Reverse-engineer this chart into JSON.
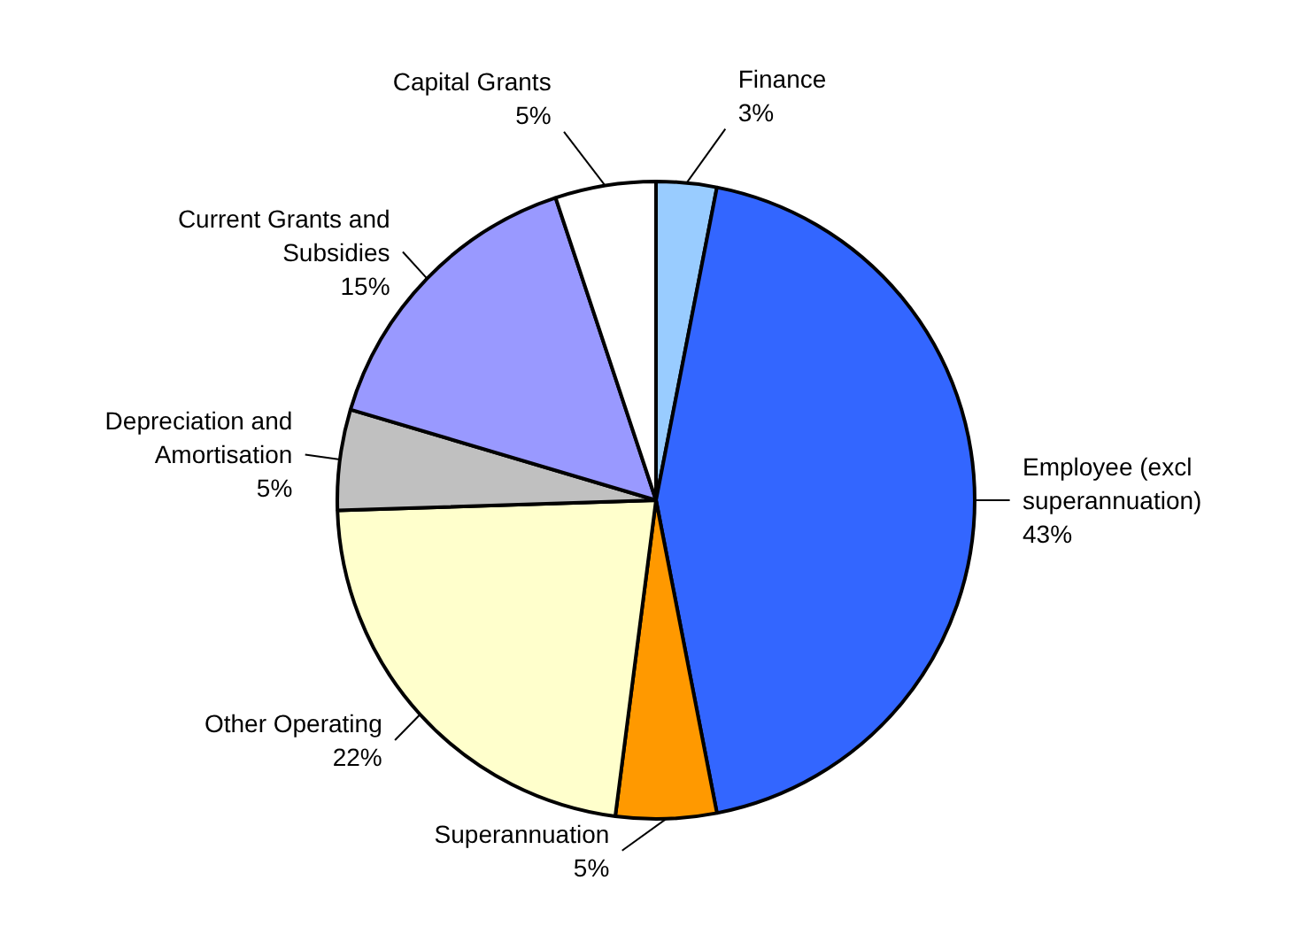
{
  "chart_data": {
    "type": "pie",
    "categories": [
      "Finance",
      "Employee (excl superannuation)",
      "Superannuation",
      "Other Operating",
      "Depreciation and Amortisation",
      "Current Grants and Subsidies",
      "Capital Grants"
    ],
    "values": [
      3,
      43,
      5,
      22,
      5,
      15,
      5
    ],
    "value_labels": [
      "3%",
      "43%",
      "5%",
      "22%",
      "5%",
      "15%",
      "5%"
    ],
    "colors": [
      "#99ccff",
      "#3366ff",
      "#ff9900",
      "#ffffcc",
      "#c0c0c0",
      "#9999ff",
      "#ffffff"
    ]
  }
}
